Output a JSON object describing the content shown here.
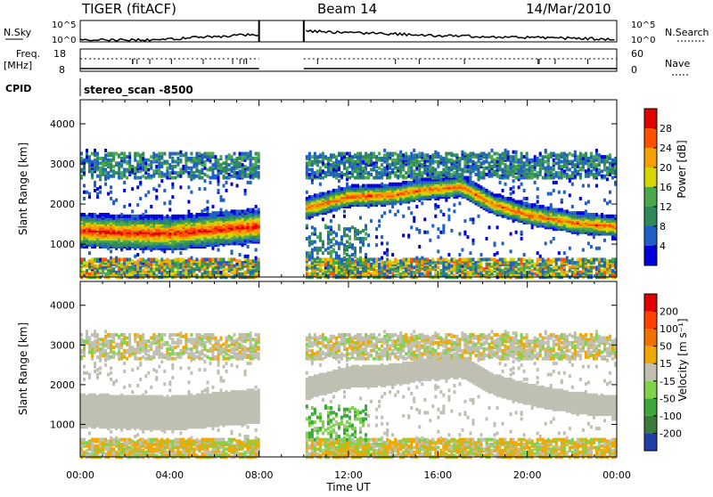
{
  "header": {
    "radar": "TIGER (fitACF)",
    "beam": "Beam 14",
    "date": "14/Mar/2010"
  },
  "status": {
    "nsky_label": "N.Sky",
    "nsky_ticks": [
      "10^5",
      "10^0"
    ],
    "nsearch_label": "N.Search",
    "nsearch_ticks": [
      "10^5",
      "10^0"
    ],
    "freq_label_line1": "Freq.",
    "freq_label_line2": "[MHz]",
    "freq_ticks": [
      "18",
      "8"
    ],
    "nave_label": "Nave",
    "nave_ticks": [
      "60",
      "0"
    ],
    "cpid_label": "CPID",
    "cpid_value": "stereo_scan -8500"
  },
  "chart_data": [
    {
      "type": "heatmap",
      "panel": "power",
      "ylabel": "Slant Range [km]",
      "xlabel": "",
      "ylim": [
        180,
        4600
      ],
      "yticks": [
        "1000",
        "2000",
        "3000",
        "4000"
      ],
      "xlim_hours": [
        0,
        24
      ],
      "data_gap_hours": [
        8.0,
        10.0
      ],
      "colorbar": {
        "label": "Power [dB]",
        "ticks": [
          "4",
          "8",
          "12",
          "16",
          "20",
          "24",
          "28"
        ],
        "colors": [
          "#0000d8",
          "#1e5fc8",
          "#2f8a5a",
          "#49a94a",
          "#d8d400",
          "#f4a000",
          "#ff5000",
          "#e00000"
        ],
        "range": [
          0,
          32
        ]
      },
      "features": [
        {
          "description_ref": "main_band",
          "t": [
            0,
            2,
            4,
            6,
            8
          ],
          "range_km": [
            1350,
            1300,
            1280,
            1380,
            1470
          ],
          "peak_db": 28
        },
        {
          "description_ref": "evening_band",
          "t": [
            10,
            12,
            14,
            15,
            16,
            17,
            18.5,
            20,
            22,
            24
          ],
          "range_km": [
            1900,
            2200,
            2250,
            2350,
            2400,
            2450,
            2000,
            1750,
            1550,
            1450
          ],
          "peak_db": 26
        }
      ]
    },
    {
      "type": "heatmap",
      "panel": "velocity",
      "ylabel": "Slant Range [km]",
      "xlabel": "Time UT",
      "ylim": [
        180,
        4600
      ],
      "yticks": [
        "1000",
        "2000",
        "3000",
        "4000"
      ],
      "xticks": [
        "00:00",
        "04:00",
        "08:00",
        "12:00",
        "16:00",
        "20:00",
        "00:00"
      ],
      "xlim_hours": [
        0,
        24
      ],
      "data_gap_hours": [
        8.0,
        10.0
      ],
      "colorbar": {
        "label": "Velocity [m s⁻¹]",
        "ticks": [
          "200",
          "100",
          "50",
          "15",
          "-15",
          "-50",
          "-100",
          "-200"
        ],
        "colors": [
          "#1f3fa8",
          "#3a7a3a",
          "#3aa83a",
          "#7ed34a",
          "#bfbfb2",
          "#f0a800",
          "#f07000",
          "#ff4000",
          "#e00000"
        ],
        "range": [
          -250,
          250
        ]
      }
    }
  ]
}
